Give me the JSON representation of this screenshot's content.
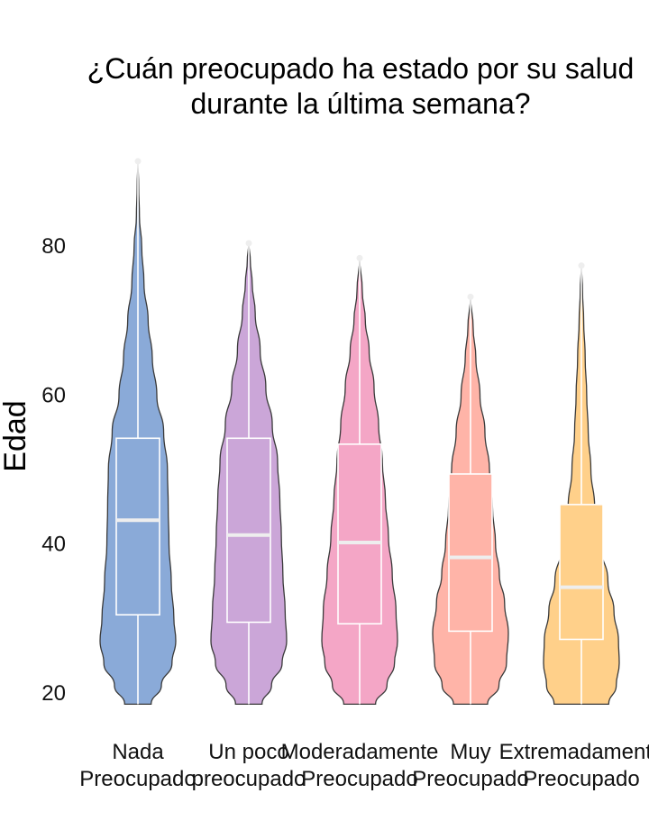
{
  "chart_data": {
    "type": "violin",
    "title_lines": [
      "¿Cuán preocupado ha estado por su salud",
      "durante la última semana?"
    ],
    "ylabel": "Edad",
    "xlabel": "",
    "ylim": [
      18,
      93
    ],
    "yticks": [
      20,
      40,
      60,
      80
    ],
    "grid": false,
    "legend": "none",
    "categories": [
      {
        "label": [
          "Nada",
          "Preocupado"
        ],
        "color": "#8AAAD8",
        "min": 18.5,
        "q1": 30.5,
        "median": 43.2,
        "q3": 54.2,
        "max": 91.5,
        "profile": [
          [
            18.5,
            0.35
          ],
          [
            21,
            0.62
          ],
          [
            24,
            0.9
          ],
          [
            27,
            1.0
          ],
          [
            30,
            0.95
          ],
          [
            35,
            0.88
          ],
          [
            40,
            0.82
          ],
          [
            45,
            0.8
          ],
          [
            50,
            0.78
          ],
          [
            55,
            0.68
          ],
          [
            60,
            0.5
          ],
          [
            65,
            0.38
          ],
          [
            70,
            0.27
          ],
          [
            75,
            0.16
          ],
          [
            80,
            0.1
          ],
          [
            84,
            0.04
          ],
          [
            88,
            0.02
          ],
          [
            91.5,
            0.0
          ]
        ]
      },
      {
        "label": [
          "Un poco",
          "preocupado"
        ],
        "color": "#CBA6D8",
        "min": 18.5,
        "q1": 29.5,
        "median": 41.2,
        "q3": 54.2,
        "max": 80.5,
        "profile": [
          [
            18.5,
            0.35
          ],
          [
            21,
            0.6
          ],
          [
            24,
            0.88
          ],
          [
            27,
            1.0
          ],
          [
            31,
            0.96
          ],
          [
            36,
            0.9
          ],
          [
            41,
            0.86
          ],
          [
            46,
            0.82
          ],
          [
            51,
            0.76
          ],
          [
            56,
            0.62
          ],
          [
            61,
            0.45
          ],
          [
            66,
            0.3
          ],
          [
            71,
            0.17
          ],
          [
            75,
            0.09
          ],
          [
            78,
            0.04
          ],
          [
            80.5,
            0.0
          ]
        ]
      },
      {
        "label": [
          "Moderadamente",
          "Preocupado"
        ],
        "color": "#F4A6C6",
        "min": 18.5,
        "q1": 29.3,
        "median": 40.2,
        "q3": 53.4,
        "max": 78.5,
        "profile": [
          [
            18.5,
            0.42
          ],
          [
            21,
            0.72
          ],
          [
            24,
            0.92
          ],
          [
            27,
            1.0
          ],
          [
            31,
            0.96
          ],
          [
            36,
            0.86
          ],
          [
            41,
            0.76
          ],
          [
            46,
            0.68
          ],
          [
            51,
            0.6
          ],
          [
            56,
            0.5
          ],
          [
            61,
            0.38
          ],
          [
            66,
            0.25
          ],
          [
            70,
            0.15
          ],
          [
            74,
            0.07
          ],
          [
            78.5,
            0.0
          ]
        ]
      },
      {
        "label": [
          "Muy",
          "Preocupado"
        ],
        "color": "#FFB4A8",
        "min": 18.5,
        "q1": 28.3,
        "median": 38.2,
        "q3": 49.4,
        "max": 73.3,
        "profile": [
          [
            18.5,
            0.45
          ],
          [
            21,
            0.75
          ],
          [
            24,
            0.95
          ],
          [
            28,
            1.0
          ],
          [
            32,
            0.9
          ],
          [
            36,
            0.76
          ],
          [
            40,
            0.66
          ],
          [
            45,
            0.58
          ],
          [
            50,
            0.5
          ],
          [
            55,
            0.38
          ],
          [
            60,
            0.25
          ],
          [
            65,
            0.14
          ],
          [
            69,
            0.07
          ],
          [
            73.3,
            0.0
          ]
        ]
      },
      {
        "label": [
          "Extremadamente",
          "Preocupado"
        ],
        "color": "#FFD08A",
        "min": 18.5,
        "q1": 27.2,
        "median": 34.2,
        "q3": 45.3,
        "max": 77.5,
        "profile": [
          [
            18.5,
            0.72
          ],
          [
            21,
            0.92
          ],
          [
            24,
            1.0
          ],
          [
            27,
            0.98
          ],
          [
            31,
            0.86
          ],
          [
            35,
            0.7
          ],
          [
            40,
            0.5
          ],
          [
            45,
            0.35
          ],
          [
            50,
            0.25
          ],
          [
            55,
            0.18
          ],
          [
            60,
            0.14
          ],
          [
            65,
            0.1
          ],
          [
            70,
            0.06
          ],
          [
            74,
            0.03
          ],
          [
            77.5,
            0.0
          ]
        ]
      }
    ]
  }
}
